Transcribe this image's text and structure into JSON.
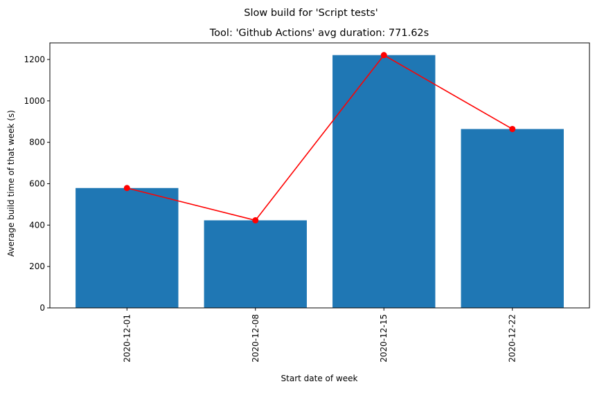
{
  "chart_data": {
    "type": "bar",
    "suptitle": "Slow build for 'Script tests'",
    "title": "Tool: 'Github Actions' avg duration: 771.62s",
    "xlabel": "Start date of week",
    "ylabel": "Average build time of that week (s)",
    "categories": [
      "2020-12-01",
      "2020-12-08",
      "2020-12-15",
      "2020-12-22"
    ],
    "series": [
      {
        "type": "bar",
        "values": [
          579,
          423,
          1221,
          864
        ],
        "color": "#1f77b4"
      },
      {
        "type": "line",
        "values": [
          579,
          423,
          1221,
          864
        ],
        "color": "#ff0000",
        "marker": "circle"
      }
    ],
    "ylim": [
      0,
      1280
    ],
    "yticks": [
      0,
      200,
      400,
      600,
      800,
      1000,
      1200
    ],
    "xtick_rotation": 90,
    "grid": false,
    "legend": null
  }
}
